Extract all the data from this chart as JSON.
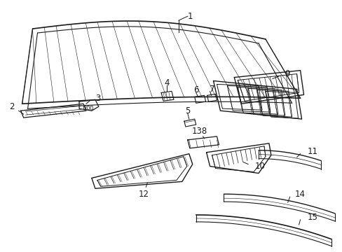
{
  "background_color": "#ffffff",
  "line_color": "#1a1a1a",
  "text_color": "#1a1a1a",
  "font_size": 8.5,
  "fig_width": 4.89,
  "fig_height": 3.6,
  "dpi": 100
}
